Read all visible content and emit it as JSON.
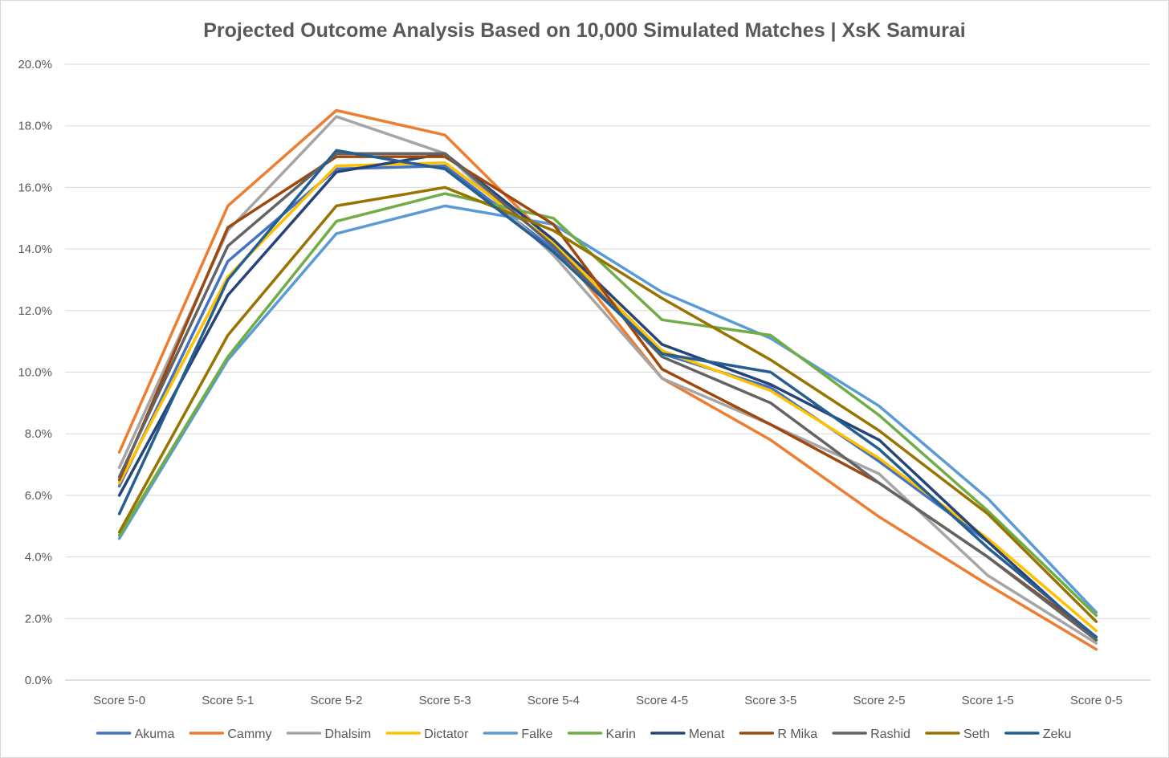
{
  "chart_data": {
    "type": "line",
    "title": "Projected Outcome Analysis Based on 10,000 Simulated Matches | XsK Samurai",
    "xlabel": "",
    "ylabel": "",
    "ylim": [
      0,
      20
    ],
    "y_tick_step": 2,
    "y_tick_format": "percent_1dp",
    "grid": true,
    "legend_position": "bottom",
    "categories": [
      "Score 5-0",
      "Score 5-1",
      "Score 5-2",
      "Score 5-3",
      "Score 5-4",
      "Score 4-5",
      "Score 3-5",
      "Score 2-5",
      "Score 1-5",
      "Score 0-5"
    ],
    "series": [
      {
        "name": "Akuma",
        "color": "#4472C4",
        "values": [
          6.3,
          13.6,
          16.6,
          16.7,
          14.0,
          10.6,
          9.5,
          7.1,
          4.5,
          1.3
        ]
      },
      {
        "name": "Cammy",
        "color": "#ED7D31",
        "values": [
          7.4,
          15.4,
          18.5,
          17.7,
          14.2,
          9.8,
          7.8,
          5.3,
          3.1,
          1.0
        ]
      },
      {
        "name": "Dhalsim",
        "color": "#A5A5A5",
        "values": [
          6.9,
          14.6,
          18.3,
          17.1,
          13.8,
          9.8,
          8.3,
          6.7,
          3.4,
          1.2
        ]
      },
      {
        "name": "Dictator",
        "color": "#FFC000",
        "values": [
          6.4,
          13.1,
          16.7,
          16.8,
          14.2,
          10.7,
          9.4,
          7.2,
          4.6,
          1.6
        ]
      },
      {
        "name": "Falke",
        "color": "#5B9BD5",
        "values": [
          4.6,
          10.4,
          14.5,
          15.4,
          14.8,
          12.6,
          11.1,
          8.9,
          5.9,
          2.2
        ]
      },
      {
        "name": "Karin",
        "color": "#70AD47",
        "values": [
          4.7,
          10.5,
          14.9,
          15.8,
          15.0,
          11.7,
          11.2,
          8.6,
          5.5,
          2.1
        ]
      },
      {
        "name": "Menat",
        "color": "#264478",
        "values": [
          6.0,
          12.5,
          16.5,
          17.1,
          14.3,
          10.9,
          9.6,
          7.8,
          4.5,
          1.3
        ]
      },
      {
        "name": "R Mika",
        "color": "#9E480E",
        "values": [
          6.5,
          14.7,
          17.0,
          17.0,
          14.8,
          10.1,
          8.3,
          6.4,
          4.0,
          1.4
        ]
      },
      {
        "name": "Rashid",
        "color": "#636363",
        "values": [
          6.6,
          14.1,
          17.1,
          17.1,
          14.1,
          10.5,
          9.0,
          6.4,
          4.0,
          1.3
        ]
      },
      {
        "name": "Seth",
        "color": "#997300",
        "values": [
          4.8,
          11.2,
          15.4,
          16.0,
          14.6,
          12.4,
          10.4,
          8.1,
          5.4,
          1.9
        ]
      },
      {
        "name": "Zeku",
        "color": "#255E91",
        "values": [
          5.4,
          13.0,
          17.2,
          16.6,
          13.9,
          10.6,
          10.0,
          7.5,
          4.3,
          1.4
        ]
      }
    ]
  }
}
